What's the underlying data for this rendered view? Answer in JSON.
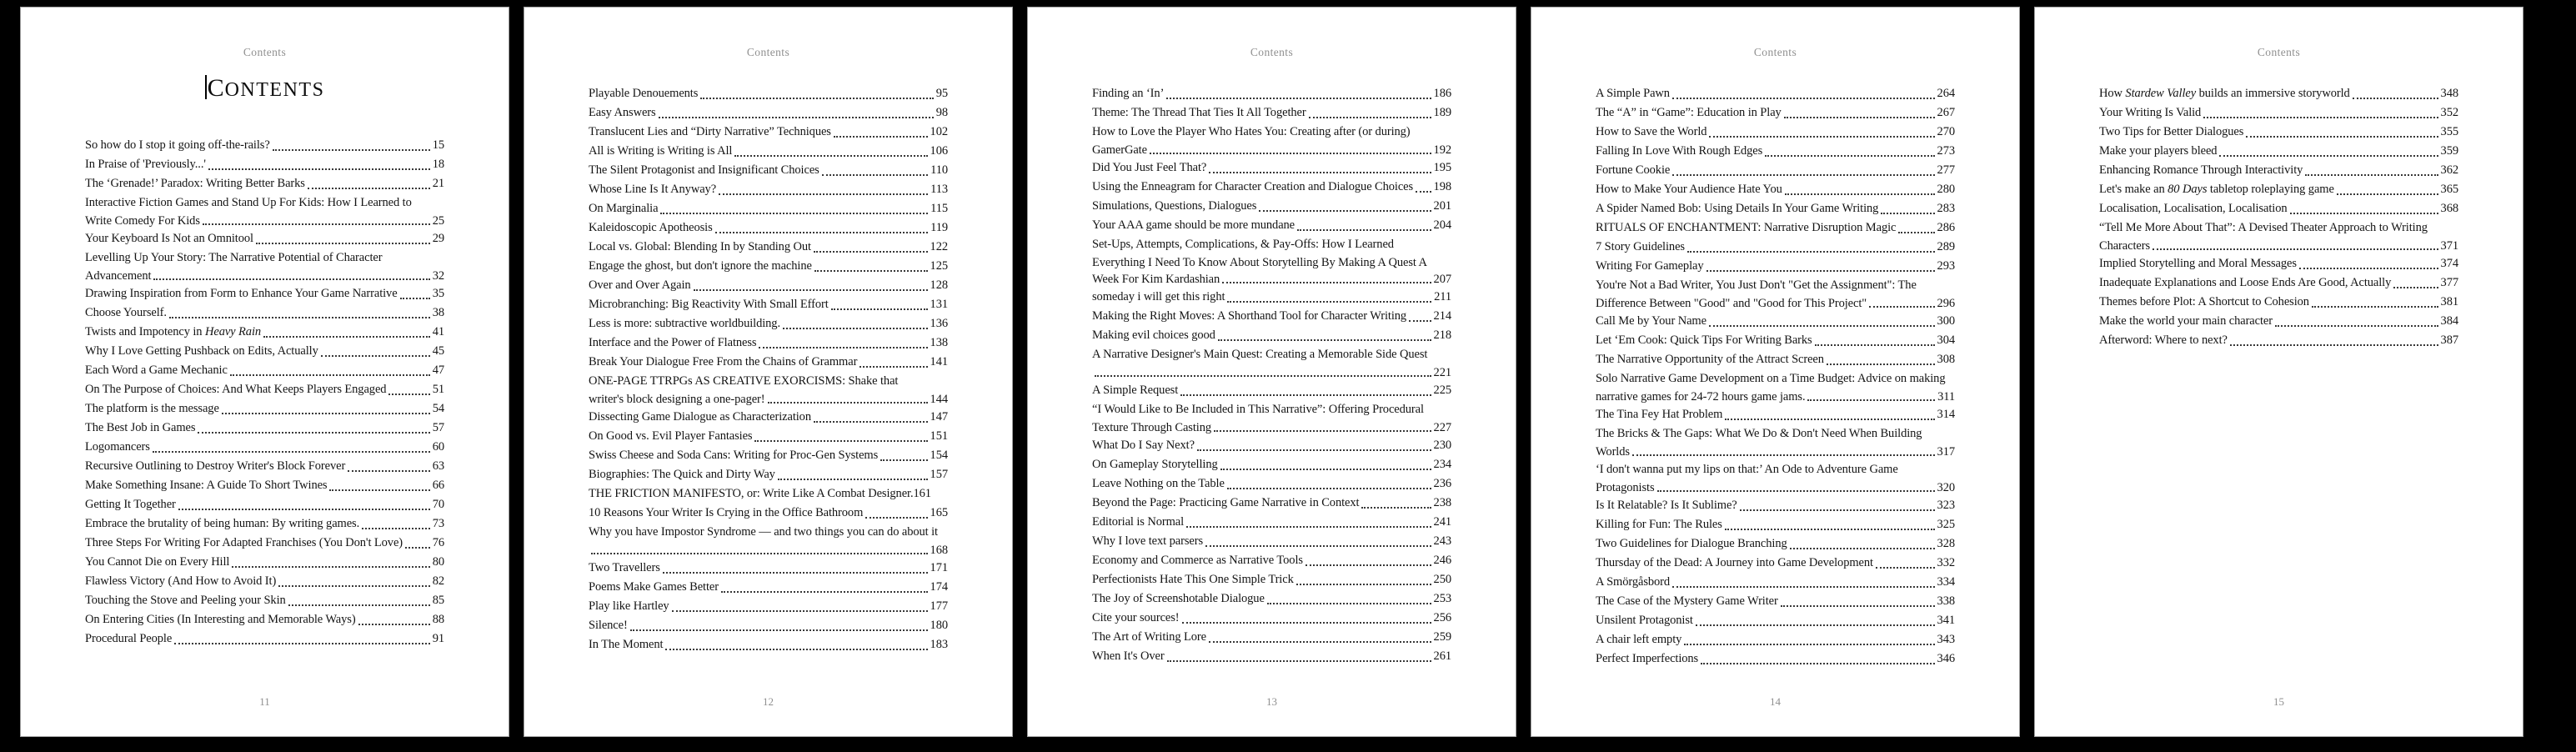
{
  "colors": {
    "canvas_bg": "#000000",
    "page_bg": "#ffffff",
    "text": "#141414",
    "muted": "#8f8f8f",
    "leader_dots": "#383838",
    "page_edge": "#9e9e9e"
  },
  "pages": [
    {
      "running_header": "Contents",
      "title": {
        "text": "CONTENTS",
        "caret": true
      },
      "footer": "11",
      "entries": [
        {
          "lines": [
            "So how do I stop it going off-the-rails?"
          ],
          "page": "15"
        },
        {
          "lines": [
            "In Praise of 'Previously...'"
          ],
          "page": "18"
        },
        {
          "lines": [
            "The ‘Grenade!’ Paradox: Writing Better Barks"
          ],
          "page": "21"
        },
        {
          "lines": [
            "Interactive Fiction Games and Stand Up For Kids: How I Learned to",
            "Write Comedy For Kids"
          ],
          "page": "25"
        },
        {
          "lines": [
            "Your Keyboard Is Not an Omnitool"
          ],
          "page": "29"
        },
        {
          "lines": [
            "Levelling Up Your Story: The Narrative Potential of Character",
            "Advancement"
          ],
          "page": "32"
        },
        {
          "lines": [
            "Drawing Inspiration from Form to Enhance Your Game Narrative"
          ],
          "page": "35"
        },
        {
          "lines": [
            "Choose Yourself."
          ],
          "page": "38"
        },
        {
          "lines": [
            "Twists and Impotency in *Heavy Rain*"
          ],
          "page": "41"
        },
        {
          "lines": [
            "Why I Love Getting Pushback on Edits, Actually"
          ],
          "page": "45"
        },
        {
          "lines": [
            "Each Word a Game Mechanic"
          ],
          "page": "47"
        },
        {
          "lines": [
            "On The Purpose of Choices: And What Keeps Players Engaged"
          ],
          "page": "51"
        },
        {
          "lines": [
            "The platform is the message"
          ],
          "page": "54"
        },
        {
          "lines": [
            "The Best Job in Games"
          ],
          "page": "57"
        },
        {
          "lines": [
            "Logomancers"
          ],
          "page": "60"
        },
        {
          "lines": [
            "Recursive Outlining to Destroy Writer's Block Forever"
          ],
          "page": "63"
        },
        {
          "lines": [
            "Make Something Insane: A Guide To Short Twines"
          ],
          "page": "66"
        },
        {
          "lines": [
            "Getting It Together"
          ],
          "page": "70"
        },
        {
          "lines": [
            "Embrace the brutality of being human: By writing games."
          ],
          "page": "73"
        },
        {
          "lines": [
            "Three Steps For Writing For Adapted Franchises (You Don't Love)"
          ],
          "page": "76"
        },
        {
          "lines": [
            "You Cannot Die on Every Hill"
          ],
          "page": "80"
        },
        {
          "lines": [
            "Flawless Victory (And How to Avoid It)"
          ],
          "page": "82"
        },
        {
          "lines": [
            "Touching the Stove and Peeling your Skin"
          ],
          "page": "85"
        },
        {
          "lines": [
            "On Entering Cities (In Interesting and Memorable Ways)"
          ],
          "page": "88"
        },
        {
          "lines": [
            "Procedural People"
          ],
          "page": "91"
        }
      ]
    },
    {
      "running_header": "Contents",
      "footer": "12",
      "entries": [
        {
          "lines": [
            "Playable Denouements"
          ],
          "page": "95"
        },
        {
          "lines": [
            "Easy Answers"
          ],
          "page": "98"
        },
        {
          "lines": [
            "Translucent Lies and “Dirty Narrative” Techniques"
          ],
          "page": "102"
        },
        {
          "lines": [
            "All is Writing is Writing is All"
          ],
          "page": "106"
        },
        {
          "lines": [
            "The Silent Protagonist and Insignificant Choices"
          ],
          "page": "110"
        },
        {
          "lines": [
            "Whose Line Is It Anyway?"
          ],
          "page": "113"
        },
        {
          "lines": [
            "On Marginalia"
          ],
          "page": "115"
        },
        {
          "lines": [
            "Kaleidoscopic Apotheosis"
          ],
          "page": "119"
        },
        {
          "lines": [
            "Local vs. Global: Blending In by Standing Out"
          ],
          "page": "122"
        },
        {
          "lines": [
            "Engage the ghost, but don't ignore the machine"
          ],
          "page": "125"
        },
        {
          "lines": [
            "Over and Over Again"
          ],
          "page": "128"
        },
        {
          "lines": [
            "Microbranching: Big Reactivity With Small Effort"
          ],
          "page": "131"
        },
        {
          "lines": [
            "Less is more: subtractive worldbuilding."
          ],
          "page": "136"
        },
        {
          "lines": [
            "Interface and the Power of Flatness"
          ],
          "page": "138"
        },
        {
          "lines": [
            "Break Your Dialogue Free From the Chains of Grammar"
          ],
          "page": "141"
        },
        {
          "lines": [
            "ONE-PAGE TTRPGs AS CREATIVE EXORCISMS: Shake that",
            "writer's block designing a one-pager!"
          ],
          "page": "144"
        },
        {
          "lines": [
            "Dissecting Game Dialogue as Characterization"
          ],
          "page": "147"
        },
        {
          "lines": [
            "On Good vs. Evil Player Fantasies"
          ],
          "page": "151"
        },
        {
          "lines": [
            "Swiss Cheese and Soda Cans: Writing for Proc-Gen Systems"
          ],
          "page": "154"
        },
        {
          "lines": [
            "Biographies: The Quick and Dirty Way"
          ],
          "page": "157"
        },
        {
          "lines": [
            "THE FRICTION MANIFESTO, or: Write Like A Combat Designer."
          ],
          "page": "161",
          "leader": false
        },
        {
          "lines": [
            "10 Reasons Your Writer Is Crying in the Office Bathroom"
          ],
          "page": "165"
        },
        {
          "lines": [
            "Why you have Impostor Syndrome — and two things you can do about it",
            ""
          ],
          "page": "168"
        },
        {
          "lines": [
            "Two Travellers"
          ],
          "page": "171"
        },
        {
          "lines": [
            "Poems Make Games Better"
          ],
          "page": "174"
        },
        {
          "lines": [
            "Play like Hartley"
          ],
          "page": "177"
        },
        {
          "lines": [
            "Silence!"
          ],
          "page": "180"
        },
        {
          "lines": [
            "In The Moment"
          ],
          "page": "183"
        }
      ]
    },
    {
      "running_header": "Contents",
      "footer": "13",
      "entries": [
        {
          "lines": [
            "Finding an ‘In’"
          ],
          "page": "186"
        },
        {
          "lines": [
            "Theme: The Thread That Ties It All Together"
          ],
          "page": "189"
        },
        {
          "lines": [
            "How to Love the Player Who Hates You: Creating after (or during)",
            "GamerGate"
          ],
          "page": "192"
        },
        {
          "lines": [
            "Did You Just Feel That?"
          ],
          "page": "195"
        },
        {
          "lines": [
            "Using the Enneagram for Character Creation and Dialogue Choices"
          ],
          "page": "198"
        },
        {
          "lines": [
            "Simulations, Questions, Dialogues"
          ],
          "page": "201"
        },
        {
          "lines": [
            "Your AAA game should be more mundane"
          ],
          "page": "204"
        },
        {
          "lines": [
            "Set-Ups, Attempts, Complications, & Pay-Offs: How I Learned",
            "Everything I Need To Know About Storytelling By Making A Quest A",
            "Week For Kim Kardashian"
          ],
          "page": "207"
        },
        {
          "lines": [
            "someday i will get this right"
          ],
          "page": "211"
        },
        {
          "lines": [
            "Making the Right Moves: A Shorthand Tool for Character Writing"
          ],
          "page": "214"
        },
        {
          "lines": [
            "Making evil choices good"
          ],
          "page": "218"
        },
        {
          "lines": [
            "A Narrative Designer's Main Quest: Creating a Memorable Side Quest",
            ""
          ],
          "page": "221"
        },
        {
          "lines": [
            "A Simple Request"
          ],
          "page": "225"
        },
        {
          "lines": [
            "“I Would Like to Be Included in This Narrative”: Offering Procedural",
            "Texture Through Casting"
          ],
          "page": "227"
        },
        {
          "lines": [
            "What Do I Say Next?"
          ],
          "page": "230"
        },
        {
          "lines": [
            "On Gameplay Storytelling"
          ],
          "page": "234"
        },
        {
          "lines": [
            "Leave Nothing on the Table"
          ],
          "page": "236"
        },
        {
          "lines": [
            "Beyond the Page: Practicing Game Narrative in Context"
          ],
          "page": "238"
        },
        {
          "lines": [
            "Editorial is Normal"
          ],
          "page": "241"
        },
        {
          "lines": [
            "Why I love text parsers"
          ],
          "page": "243"
        },
        {
          "lines": [
            "Economy and Commerce as Narrative Tools"
          ],
          "page": "246"
        },
        {
          "lines": [
            "Perfectionists Hate This One Simple Trick"
          ],
          "page": "250"
        },
        {
          "lines": [
            "The Joy of Screenshotable Dialogue"
          ],
          "page": "253"
        },
        {
          "lines": [
            "Cite your sources!"
          ],
          "page": "256"
        },
        {
          "lines": [
            "The Art of Writing Lore"
          ],
          "page": "259"
        },
        {
          "lines": [
            "When It's Over"
          ],
          "page": "261"
        }
      ]
    },
    {
      "running_header": "Contents",
      "footer": "14",
      "entries": [
        {
          "lines": [
            "A Simple Pawn"
          ],
          "page": "264"
        },
        {
          "lines": [
            "The “A” in “Game”: Education in Play"
          ],
          "page": "267"
        },
        {
          "lines": [
            "How to Save the World"
          ],
          "page": "270"
        },
        {
          "lines": [
            "Falling In Love With Rough Edges"
          ],
          "page": "273"
        },
        {
          "lines": [
            "Fortune Cookie"
          ],
          "page": "277"
        },
        {
          "lines": [
            "How to Make Your Audience Hate You"
          ],
          "page": "280"
        },
        {
          "lines": [
            "A Spider Named Bob: Using Details In Your Game Writing"
          ],
          "page": "283"
        },
        {
          "lines": [
            "RITUALS OF ENCHANTMENT: Narrative Disruption Magic"
          ],
          "page": "286"
        },
        {
          "lines": [
            "7 Story Guidelines"
          ],
          "page": "289"
        },
        {
          "lines": [
            "Writing For Gameplay"
          ],
          "page": "293"
        },
        {
          "lines": [
            "You're Not a Bad Writer, You Just Don't \"Get the Assignment\": The",
            "Difference Between \"Good\" and \"Good for This Project\""
          ],
          "page": "296"
        },
        {
          "lines": [
            "Call Me by Your Name"
          ],
          "page": "300"
        },
        {
          "lines": [
            "Let ‘Em Cook: Quick Tips For Writing Barks"
          ],
          "page": "304"
        },
        {
          "lines": [
            "The Narrative Opportunity of the Attract Screen"
          ],
          "page": "308"
        },
        {
          "lines": [
            "Solo Narrative Game Development on a Time Budget: Advice on making",
            "narrative games for 24-72 hours game jams."
          ],
          "page": "311"
        },
        {
          "lines": [
            "The Tina Fey Hat Problem"
          ],
          "page": "314"
        },
        {
          "lines": [
            "The Bricks & The Gaps: What We Do & Don't Need When Building",
            "Worlds"
          ],
          "page": "317"
        },
        {
          "lines": [
            "‘I don't wanna put my lips on that:’ An Ode to Adventure Game",
            "Protagonists"
          ],
          "page": "320"
        },
        {
          "lines": [
            "Is It Relatable? Is It Sublime?"
          ],
          "page": "323"
        },
        {
          "lines": [
            "Killing for Fun: The Rules"
          ],
          "page": "325"
        },
        {
          "lines": [
            "Two Guidelines for Dialogue Branching"
          ],
          "page": "328"
        },
        {
          "lines": [
            "Thursday of the Dead: A Journey into Game Development"
          ],
          "page": "332"
        },
        {
          "lines": [
            "A Smörgåsbord"
          ],
          "page": "334"
        },
        {
          "lines": [
            "The Case of the Mystery Game Writer"
          ],
          "page": "338"
        },
        {
          "lines": [
            "Unsilent Protagonist"
          ],
          "page": "341"
        },
        {
          "lines": [
            "A chair left empty"
          ],
          "page": "343"
        },
        {
          "lines": [
            "Perfect Imperfections"
          ],
          "page": "346"
        }
      ]
    },
    {
      "running_header": "Contents",
      "footer": "15",
      "entries": [
        {
          "lines": [
            "How *Stardew Valley* builds an immersive storyworld"
          ],
          "page": "348"
        },
        {
          "lines": [
            "Your Writing Is Valid"
          ],
          "page": "352"
        },
        {
          "lines": [
            "Two Tips for Better Dialogues"
          ],
          "page": "355"
        },
        {
          "lines": [
            "Make your players bleed"
          ],
          "page": "359"
        },
        {
          "lines": [
            "Enhancing Romance Through Interactivity"
          ],
          "page": "362"
        },
        {
          "lines": [
            "Let's make an *80 Days* tabletop roleplaying game"
          ],
          "page": "365"
        },
        {
          "lines": [
            "Localisation, Localisation, Localisation"
          ],
          "page": "368"
        },
        {
          "lines": [
            "“Tell Me More About That”: A Devised Theater Approach to Writing",
            "Characters"
          ],
          "page": "371"
        },
        {
          "lines": [
            "Implied Storytelling and Moral Messages"
          ],
          "page": "374"
        },
        {
          "lines": [
            "Inadequate Explanations and Loose Ends Are Good, Actually"
          ],
          "page": "377"
        },
        {
          "lines": [
            "Themes before Plot: A Shortcut to Cohesion"
          ],
          "page": "381"
        },
        {
          "lines": [
            "Make the world your main character"
          ],
          "page": "384"
        },
        {
          "lines": [
            "Afterword: Where to next?"
          ],
          "page": "387"
        }
      ]
    }
  ]
}
